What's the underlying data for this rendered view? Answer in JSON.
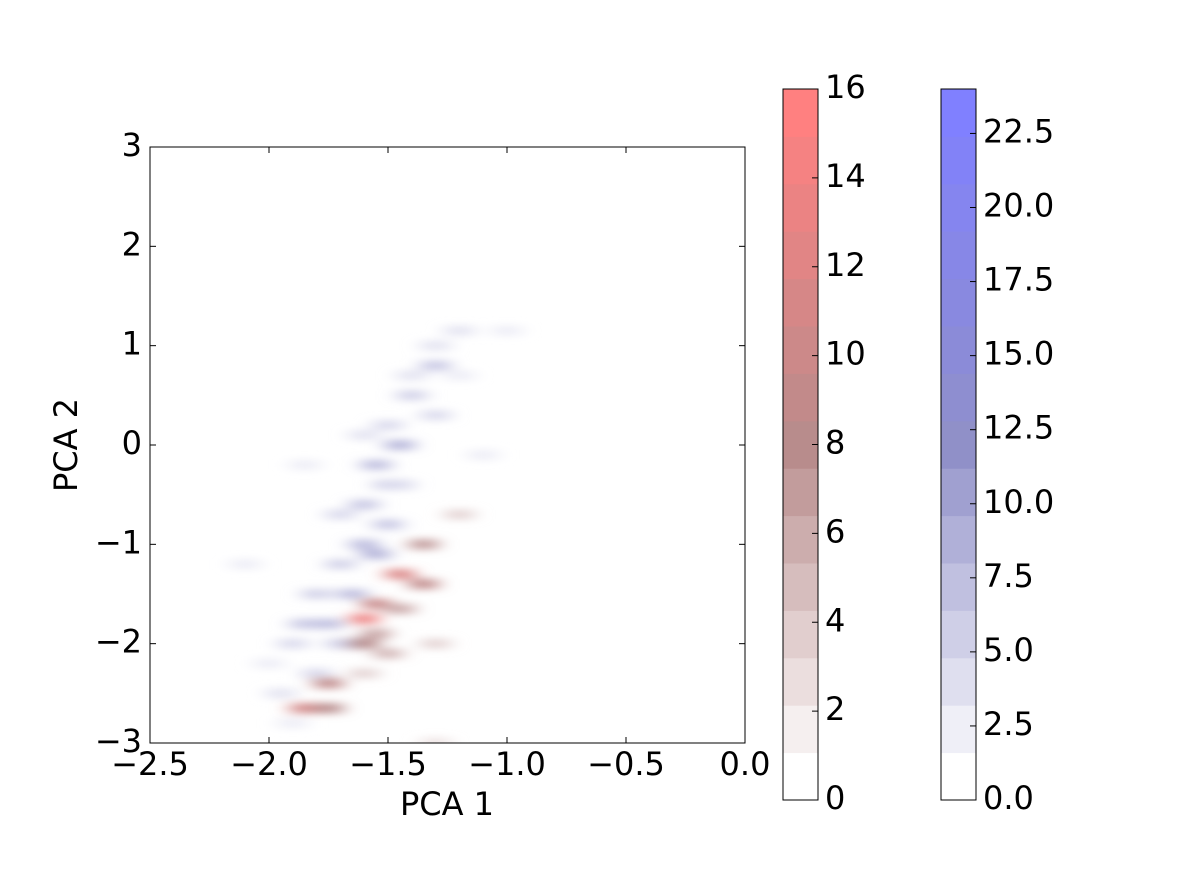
{
  "chart_data": {
    "type": "heatmap",
    "xlabel": "PCA 1",
    "ylabel": "PCA 2",
    "xlim": [
      -2.5,
      0.0
    ],
    "ylim": [
      -3,
      3
    ],
    "xticks": [
      {
        "value": -2.5,
        "label": "−2.5"
      },
      {
        "value": -2.0,
        "label": "−2.0"
      },
      {
        "value": -1.5,
        "label": "−1.5"
      },
      {
        "value": -1.0,
        "label": "−1.0"
      },
      {
        "value": -0.5,
        "label": "−0.5"
      },
      {
        "value": 0,
        "label": "0.0"
      }
    ],
    "yticks": [
      {
        "value": -3,
        "label": "−3"
      },
      {
        "value": -2,
        "label": "−2"
      },
      {
        "value": -1,
        "label": "−1"
      },
      0,
      1,
      2,
      3
    ],
    "series": [
      {
        "cmap": [
          "#ffffff",
          "#b88c8c",
          "#ff8080"
        ],
        "clim": [
          0,
          16
        ],
        "cticks": [
          0,
          2,
          4,
          6,
          8,
          10,
          12,
          14,
          16
        ],
        "x": [
          -1.35,
          -1.45,
          -1.35,
          -1.55,
          -1.45,
          -1.6,
          -1.55,
          -1.6,
          -1.5,
          -1.75,
          -1.85,
          -1.75,
          -1.2,
          -1.3,
          -1.6,
          -1.3
        ],
        "y": [
          -1.0,
          -1.3,
          -1.4,
          -1.6,
          -1.65,
          -1.75,
          -1.9,
          -2.0,
          -2.1,
          -2.4,
          -2.65,
          -2.65,
          -0.7,
          -2.0,
          -2.3,
          -3.0
        ],
        "values": [
          7,
          12,
          9,
          10,
          6,
          14,
          6,
          8,
          5,
          9,
          11,
          8,
          3,
          3,
          3,
          2
        ]
      },
      {
        "cmap": [
          "#ffffff",
          "#9090c8",
          "#8080ff"
        ],
        "clim": [
          0,
          24
        ],
        "cticks": [
          {
            "value": 0,
            "label": "0.0"
          },
          2.5,
          {
            "value": 5,
            "label": "5.0"
          },
          7.5,
          {
            "value": 10,
            "label": "10.0"
          },
          12.5,
          {
            "value": 15,
            "label": "15.0"
          },
          17.5,
          {
            "value": 20,
            "label": "20.0"
          },
          22.5
        ],
        "x": [
          -1.2,
          -1.0,
          -1.3,
          -1.3,
          -1.4,
          -1.2,
          -1.4,
          -1.3,
          -1.5,
          -1.6,
          -1.45,
          -1.55,
          -1.1,
          -1.5,
          -1.6,
          -1.7,
          -1.5,
          -1.6,
          -1.7,
          -1.55,
          -1.8,
          -1.65,
          -1.75,
          -1.85,
          -1.9,
          -1.7,
          -1.8,
          -1.95,
          -2.0,
          -2.1,
          -1.9,
          -1.45,
          -1.85
        ],
        "y": [
          1.15,
          1.15,
          1.0,
          0.8,
          0.7,
          0.7,
          0.5,
          0.3,
          0.2,
          0.1,
          0.0,
          -0.2,
          -0.1,
          -0.4,
          -0.6,
          -0.7,
          -0.8,
          -1.0,
          -1.2,
          -1.1,
          -1.5,
          -1.5,
          -1.8,
          -1.8,
          -2.0,
          -2.0,
          -2.3,
          -2.5,
          -2.2,
          -1.2,
          -2.8,
          -0.4,
          -0.2
        ],
        "values": [
          3,
          2,
          3,
          6,
          3,
          2,
          5,
          4,
          4,
          3,
          8,
          7,
          2,
          5,
          6,
          4,
          6,
          7,
          5,
          8,
          5,
          7,
          7,
          6,
          4,
          5,
          4,
          3,
          2,
          2,
          2,
          4,
          2
        ]
      }
    ]
  }
}
